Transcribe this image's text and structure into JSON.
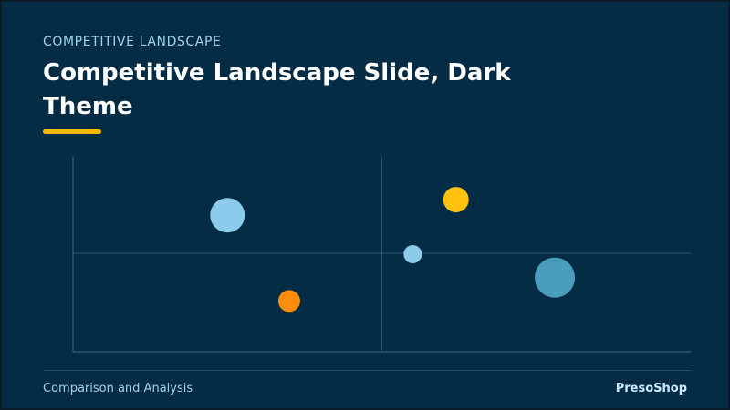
{
  "slide": {
    "eyebrow": "COMPETITIVE LANDSCAPE",
    "title": "Competitive Landscape Slide, Dark Theme",
    "footer_left": "Comparison and Analysis",
    "footer_right": "PresoShop"
  },
  "colors": {
    "background": "#052c45",
    "accent_yellow": "#f6b900",
    "axis": "#2a5672",
    "bubble_light_blue": "#8ccbeb",
    "bubble_orange": "#ff8c0a",
    "bubble_yellow": "#ffc20e",
    "bubble_steel_blue": "#4b9dbd"
  },
  "chart_data": {
    "type": "scatter",
    "xlim": [
      0,
      100
    ],
    "ylim": [
      0,
      100
    ],
    "quadrant_dividers": {
      "x": 50,
      "y": 50
    },
    "grid": false,
    "points": [
      {
        "x": 25,
        "y": 70,
        "size": 19,
        "color": "#8ccbeb"
      },
      {
        "x": 35,
        "y": 26,
        "size": 12,
        "color": "#ff8c0a"
      },
      {
        "x": 62,
        "y": 78,
        "size": 14,
        "color": "#ffc20e"
      },
      {
        "x": 55,
        "y": 50,
        "size": 10,
        "color": "#8ccbeb"
      },
      {
        "x": 78,
        "y": 38,
        "size": 22,
        "color": "#4b9dbd"
      }
    ]
  }
}
